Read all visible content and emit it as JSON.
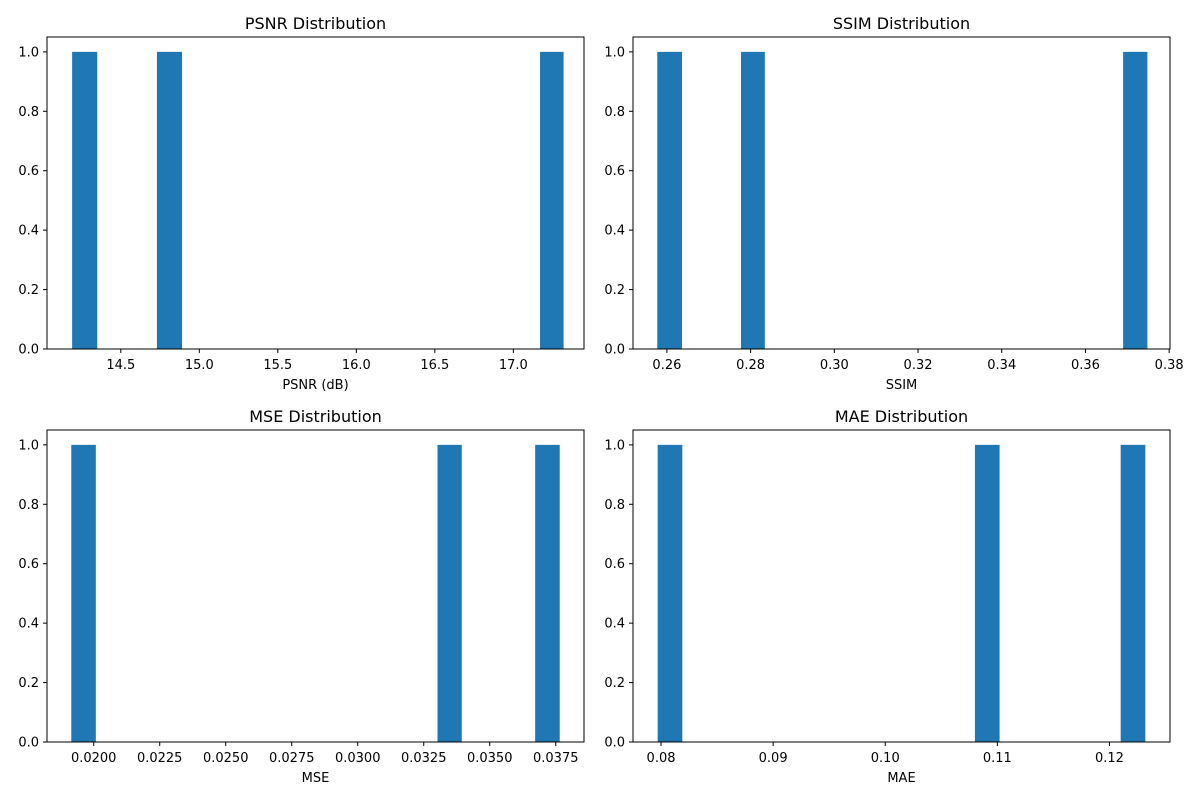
{
  "chart_data": [
    {
      "type": "bar",
      "title": "PSNR Distribution",
      "xlabel": "PSNR (dB)",
      "ylabel": "",
      "color": "#1f77b4",
      "xlim": [
        14.03,
        17.45
      ],
      "ylim": [
        0,
        1.05
      ],
      "xticks": [
        14.5,
        15.0,
        15.5,
        16.0,
        16.5,
        17.0
      ],
      "xtick_labels": [
        "14.5",
        "15.0",
        "15.5",
        "16.0",
        "16.5",
        "17.0"
      ],
      "yticks": [
        0.0,
        0.2,
        0.4,
        0.6,
        0.8,
        1.0
      ],
      "ytick_labels": [
        "0.0",
        "0.2",
        "0.4",
        "0.6",
        "0.8",
        "1.0"
      ],
      "bins": [
        {
          "x_start": 14.19,
          "x_end": 14.35,
          "count": 1
        },
        {
          "x_start": 14.73,
          "x_end": 14.89,
          "count": 1
        },
        {
          "x_start": 17.17,
          "x_end": 17.32,
          "count": 1
        }
      ]
    },
    {
      "type": "bar",
      "title": "SSIM Distribution",
      "xlabel": "SSIM",
      "ylabel": "",
      "color": "#1f77b4",
      "xlim": [
        0.2519,
        0.3802
      ],
      "ylim": [
        0,
        1.05
      ],
      "xticks": [
        0.26,
        0.28,
        0.3,
        0.32,
        0.34,
        0.36,
        0.38
      ],
      "xtick_labels": [
        "0.26",
        "0.28",
        "0.30",
        "0.32",
        "0.34",
        "0.36",
        "0.38"
      ],
      "yticks": [
        0.0,
        0.2,
        0.4,
        0.6,
        0.8,
        1.0
      ],
      "ytick_labels": [
        "0.0",
        "0.2",
        "0.4",
        "0.6",
        "0.8",
        "1.0"
      ],
      "bins": [
        {
          "x_start": 0.2577,
          "x_end": 0.2636,
          "count": 1
        },
        {
          "x_start": 0.2777,
          "x_end": 0.2834,
          "count": 1
        },
        {
          "x_start": 0.369,
          "x_end": 0.3748,
          "count": 1
        }
      ]
    },
    {
      "type": "bar",
      "title": "MSE Distribution",
      "xlabel": "MSE",
      "ylabel": "",
      "color": "#1f77b4",
      "xlim": [
        0.01823,
        0.03857
      ],
      "ylim": [
        0,
        1.05
      ],
      "xticks": [
        0.02,
        0.0225,
        0.025,
        0.0275,
        0.03,
        0.0325,
        0.035,
        0.0375
      ],
      "xtick_labels": [
        "0.0200",
        "0.0225",
        "0.0250",
        "0.0275",
        "0.0300",
        "0.0325",
        "0.0350",
        "0.0375"
      ],
      "yticks": [
        0.0,
        0.2,
        0.4,
        0.6,
        0.8,
        1.0
      ],
      "ytick_labels": [
        "0.0",
        "0.2",
        "0.4",
        "0.6",
        "0.8",
        "1.0"
      ],
      "bins": [
        {
          "x_start": 0.01915,
          "x_end": 0.02008,
          "count": 1
        },
        {
          "x_start": 0.03302,
          "x_end": 0.03394,
          "count": 1
        },
        {
          "x_start": 0.03672,
          "x_end": 0.03765,
          "count": 1
        }
      ]
    },
    {
      "type": "bar",
      "title": "MAE Distribution",
      "xlabel": "MAE",
      "ylabel": "",
      "color": "#1f77b4",
      "xlim": [
        0.0775,
        0.1254
      ],
      "ylim": [
        0,
        1.05
      ],
      "xticks": [
        0.08,
        0.09,
        0.1,
        0.11,
        0.12
      ],
      "xtick_labels": [
        "0.08",
        "0.09",
        "0.10",
        "0.11",
        "0.12"
      ],
      "yticks": [
        0.0,
        0.2,
        0.4,
        0.6,
        0.8,
        1.0
      ],
      "ytick_labels": [
        "0.0",
        "0.2",
        "0.4",
        "0.6",
        "0.8",
        "1.0"
      ],
      "bins": [
        {
          "x_start": 0.0797,
          "x_end": 0.0819,
          "count": 1
        },
        {
          "x_start": 0.108,
          "x_end": 0.1102,
          "count": 1
        },
        {
          "x_start": 0.121,
          "x_end": 0.1232,
          "count": 1
        }
      ]
    }
  ]
}
